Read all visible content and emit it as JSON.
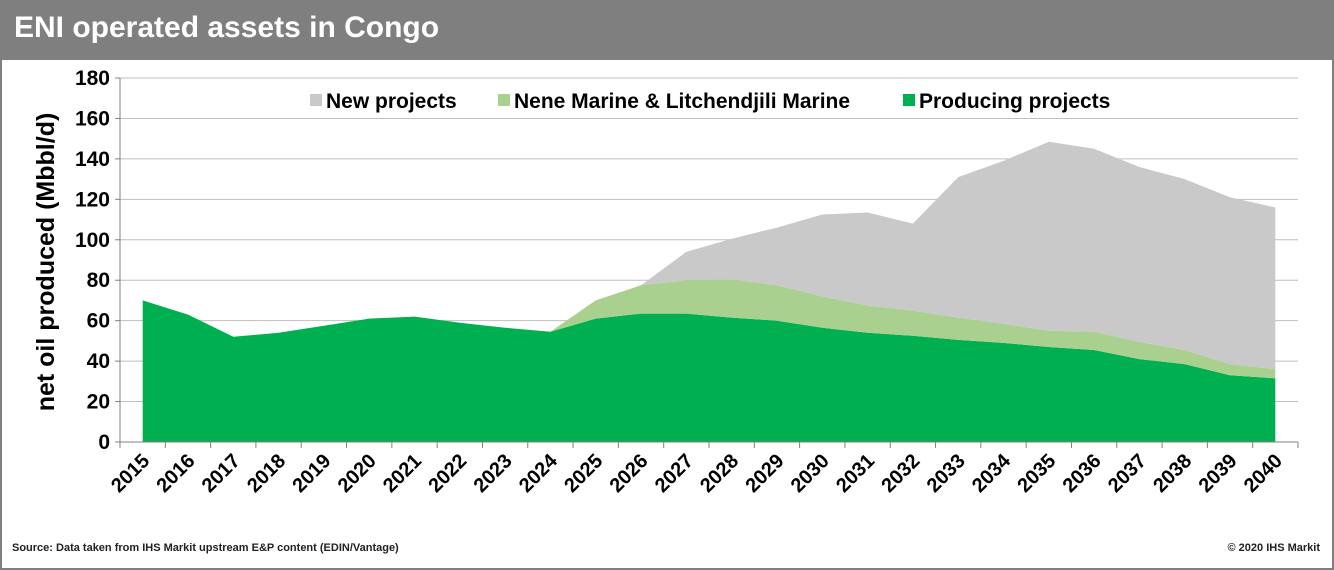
{
  "header": {
    "title": "ENI operated assets in Congo"
  },
  "footer": {
    "source": "Source: Data taken from IHS Markit upstream E&P content (EDIN/Vantage)",
    "copyright": "© 2020 IHS Markit"
  },
  "chart_data": {
    "type": "area",
    "stacked": true,
    "title": "ENI operated assets in Congo",
    "xlabel": "",
    "ylabel": "net oil produced (Mbbl/d)",
    "ylim": [
      0,
      180
    ],
    "yticks": [
      0,
      20,
      40,
      60,
      80,
      100,
      120,
      140,
      160,
      180
    ],
    "grid": true,
    "legend_position": "top",
    "categories": [
      "2015",
      "2016",
      "2017",
      "2018",
      "2019",
      "2020",
      "2021",
      "2022",
      "2023",
      "2024",
      "2025",
      "2026",
      "2027",
      "2028",
      "2029",
      "2030",
      "2031",
      "2032",
      "2033",
      "2034",
      "2035",
      "2036",
      "2037",
      "2038",
      "2039",
      "2040"
    ],
    "series": [
      {
        "name": "Producing projects",
        "color": "#00b050",
        "values": [
          70,
          63,
          52,
          54,
          57.5,
          61,
          62,
          59,
          56.5,
          54.5,
          61,
          63.5,
          63.5,
          61.5,
          60,
          56.5,
          54,
          52.5,
          50.5,
          49,
          47,
          45.5,
          41,
          38.5,
          33,
          31.5
        ]
      },
      {
        "name": "Nene Marine & Litchendjili Marine",
        "color": "#a9d08e",
        "values": [
          0,
          0,
          0,
          0,
          0,
          0,
          0,
          0,
          0,
          0,
          9,
          14,
          16.5,
          19,
          17.5,
          15.5,
          13.5,
          12.5,
          11,
          9.5,
          8,
          9,
          8.5,
          7,
          5.5,
          4.5
        ]
      },
      {
        "name": "New projects",
        "color": "#c9c9c9",
        "values": [
          0,
          0,
          0,
          0,
          0,
          0,
          0,
          0,
          0,
          0,
          0,
          0,
          14,
          20,
          28.5,
          40.5,
          46,
          43,
          69.5,
          80.5,
          93.5,
          90.5,
          86.5,
          84.5,
          82.5,
          80
        ]
      }
    ],
    "legend_order": [
      "New projects",
      "Nene Marine & Litchendjili Marine",
      "Producing projects"
    ]
  }
}
